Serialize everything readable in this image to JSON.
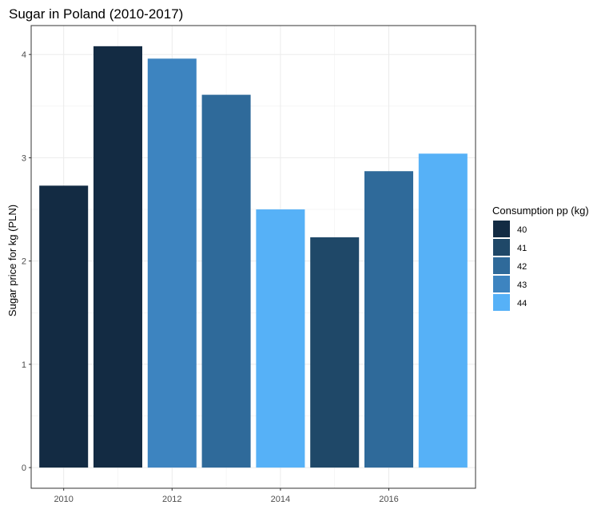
{
  "chart_data": {
    "type": "bar",
    "title": "Sugar in Poland (2010-2017)",
    "xlabel": "",
    "ylabel": "Sugar price for kg (PLN)",
    "x": [
      2010,
      2011,
      2012,
      2013,
      2014,
      2015,
      2016,
      2017
    ],
    "values": [
      2.73,
      4.08,
      3.96,
      3.61,
      2.5,
      2.23,
      2.87,
      3.04
    ],
    "consumption": [
      40,
      40,
      43,
      42,
      44,
      41,
      42,
      44
    ],
    "xlim": [
      2009.4,
      2017.6
    ],
    "ylim": [
      -0.2,
      4.28
    ],
    "xticks": [
      2010,
      2012,
      2014,
      2016
    ],
    "yticks": [
      0,
      1,
      2,
      3,
      4
    ],
    "grid": true,
    "legend": {
      "title": "Consumption pp (kg)",
      "placement": "right",
      "items": [
        {
          "label": "40",
          "color": "#132B43"
        },
        {
          "label": "41",
          "color": "#1F4868"
        },
        {
          "label": "42",
          "color": "#2F6A9A"
        },
        {
          "label": "43",
          "color": "#3D84C0"
        },
        {
          "label": "44",
          "color": "#56B1F7"
        }
      ]
    }
  }
}
